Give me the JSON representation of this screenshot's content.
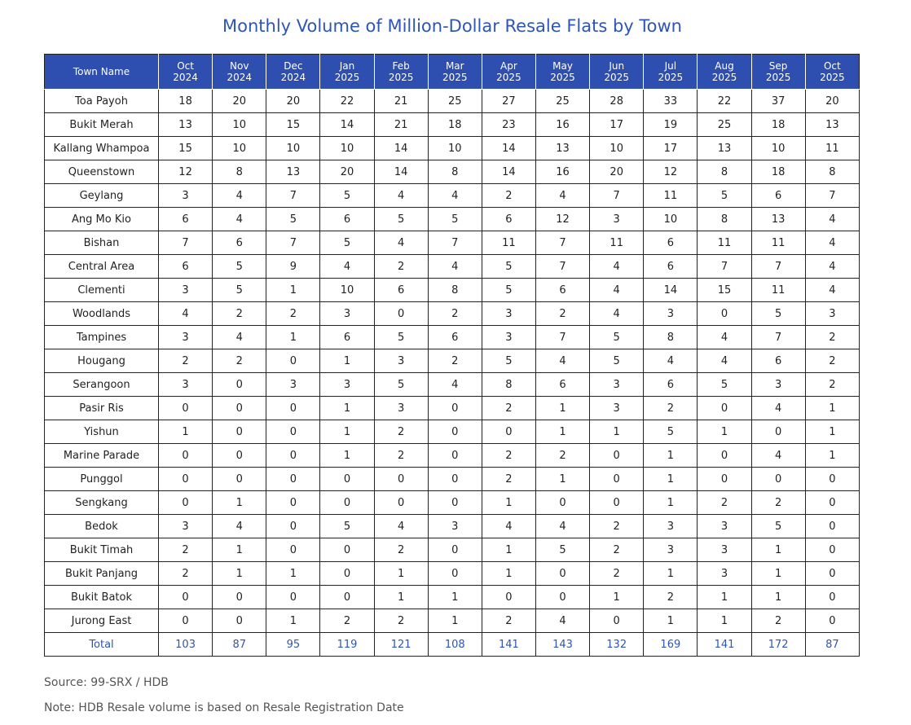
{
  "title": "Monthly Volume of Million-Dollar Resale Flats by Town",
  "table": {
    "header": {
      "first": "Town Name",
      "months": [
        {
          "month": "Oct",
          "year": "2024"
        },
        {
          "month": "Nov",
          "year": "2024"
        },
        {
          "month": "Dec",
          "year": "2024"
        },
        {
          "month": "Jan",
          "year": "2025"
        },
        {
          "month": "Feb",
          "year": "2025"
        },
        {
          "month": "Mar",
          "year": "2025"
        },
        {
          "month": "Apr",
          "year": "2025"
        },
        {
          "month": "May",
          "year": "2025"
        },
        {
          "month": "Jun",
          "year": "2025"
        },
        {
          "month": "Jul",
          "year": "2025"
        },
        {
          "month": "Aug",
          "year": "2025"
        },
        {
          "month": "Sep",
          "year": "2025"
        },
        {
          "month": "Oct",
          "year": "2025"
        }
      ]
    },
    "rows": [
      {
        "town": "Toa Payoh",
        "values": [
          18,
          20,
          20,
          22,
          21,
          25,
          27,
          25,
          28,
          33,
          22,
          37,
          20
        ]
      },
      {
        "town": "Bukit Merah",
        "values": [
          13,
          10,
          15,
          14,
          21,
          18,
          23,
          16,
          17,
          19,
          25,
          18,
          13
        ]
      },
      {
        "town": "Kallang Whampoa",
        "values": [
          15,
          10,
          10,
          10,
          14,
          10,
          14,
          13,
          10,
          17,
          13,
          10,
          11
        ]
      },
      {
        "town": "Queenstown",
        "values": [
          12,
          8,
          13,
          20,
          14,
          8,
          14,
          16,
          20,
          12,
          8,
          18,
          8
        ]
      },
      {
        "town": "Geylang",
        "values": [
          3,
          4,
          7,
          5,
          4,
          4,
          2,
          4,
          7,
          11,
          5,
          6,
          7
        ]
      },
      {
        "town": "Ang Mo Kio",
        "values": [
          6,
          4,
          5,
          6,
          5,
          5,
          6,
          12,
          3,
          10,
          8,
          13,
          4
        ]
      },
      {
        "town": "Bishan",
        "values": [
          7,
          6,
          7,
          5,
          4,
          7,
          11,
          7,
          11,
          6,
          11,
          11,
          4
        ]
      },
      {
        "town": "Central Area",
        "values": [
          6,
          5,
          9,
          4,
          2,
          4,
          5,
          7,
          4,
          6,
          7,
          7,
          4
        ]
      },
      {
        "town": "Clementi",
        "values": [
          3,
          5,
          1,
          10,
          6,
          8,
          5,
          6,
          4,
          14,
          15,
          11,
          4
        ]
      },
      {
        "town": "Woodlands",
        "values": [
          4,
          2,
          2,
          3,
          0,
          2,
          3,
          2,
          4,
          3,
          0,
          5,
          3
        ]
      },
      {
        "town": "Tampines",
        "values": [
          3,
          4,
          1,
          6,
          5,
          6,
          3,
          7,
          5,
          8,
          4,
          7,
          2
        ]
      },
      {
        "town": "Hougang",
        "values": [
          2,
          2,
          0,
          1,
          3,
          2,
          5,
          4,
          5,
          4,
          4,
          6,
          2
        ]
      },
      {
        "town": "Serangoon",
        "values": [
          3,
          0,
          3,
          3,
          5,
          4,
          8,
          6,
          3,
          6,
          5,
          3,
          2
        ]
      },
      {
        "town": "Pasir Ris",
        "values": [
          0,
          0,
          0,
          1,
          3,
          0,
          2,
          1,
          3,
          2,
          0,
          4,
          1
        ]
      },
      {
        "town": "Yishun",
        "values": [
          1,
          0,
          0,
          1,
          2,
          0,
          0,
          1,
          1,
          5,
          1,
          0,
          1
        ]
      },
      {
        "town": "Marine Parade",
        "values": [
          0,
          0,
          0,
          1,
          2,
          0,
          2,
          2,
          0,
          1,
          0,
          4,
          1
        ]
      },
      {
        "town": "Punggol",
        "values": [
          0,
          0,
          0,
          0,
          0,
          0,
          2,
          1,
          0,
          1,
          0,
          0,
          0
        ]
      },
      {
        "town": "Sengkang",
        "values": [
          0,
          1,
          0,
          0,
          0,
          0,
          1,
          0,
          0,
          1,
          2,
          2,
          0
        ]
      },
      {
        "town": "Bedok",
        "values": [
          3,
          4,
          0,
          5,
          4,
          3,
          4,
          4,
          2,
          3,
          3,
          5,
          0
        ]
      },
      {
        "town": "Bukit Timah",
        "values": [
          2,
          1,
          0,
          0,
          2,
          0,
          1,
          5,
          2,
          3,
          3,
          1,
          0
        ]
      },
      {
        "town": "Bukit Panjang",
        "values": [
          2,
          1,
          1,
          0,
          1,
          0,
          1,
          0,
          2,
          1,
          3,
          1,
          0
        ]
      },
      {
        "town": "Bukit Batok",
        "values": [
          0,
          0,
          0,
          0,
          1,
          1,
          0,
          0,
          1,
          2,
          1,
          1,
          0
        ]
      },
      {
        "town": "Jurong East",
        "values": [
          0,
          0,
          1,
          2,
          2,
          1,
          2,
          4,
          0,
          1,
          1,
          2,
          0
        ]
      }
    ],
    "total": {
      "label": "Total",
      "values": [
        103,
        87,
        95,
        119,
        121,
        108,
        141,
        143,
        132,
        169,
        141,
        172,
        87
      ]
    }
  },
  "source": "Source: 99-SRX / HDB",
  "note": "Note: HDB Resale volume is based on Resale Registration Date"
}
